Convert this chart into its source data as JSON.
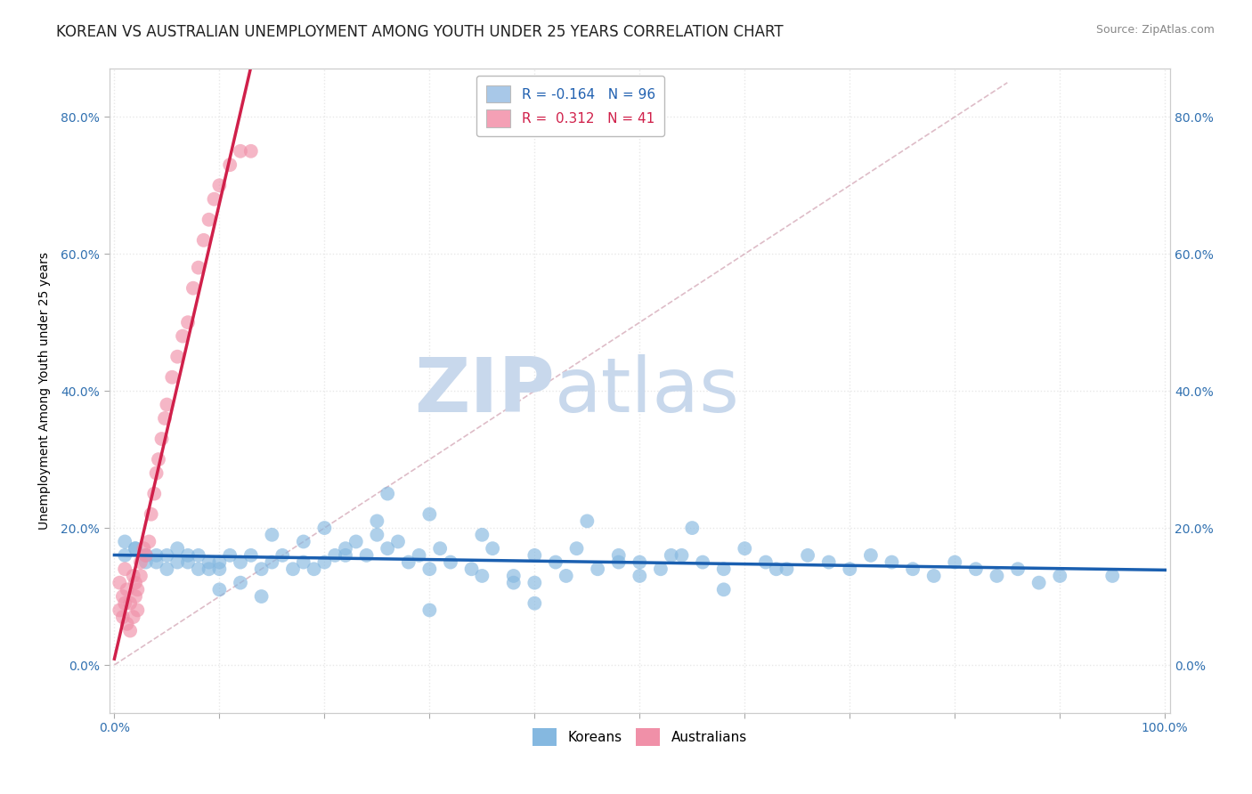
{
  "title": "KOREAN VS AUSTRALIAN UNEMPLOYMENT AMONG YOUTH UNDER 25 YEARS CORRELATION CHART",
  "source": "Source: ZipAtlas.com",
  "xlabel": "",
  "ylabel": "Unemployment Among Youth under 25 years",
  "xlim": [
    -0.005,
    1.005
  ],
  "ylim": [
    -0.07,
    0.87
  ],
  "xticks": [
    0.0,
    0.1,
    0.2,
    0.3,
    0.4,
    0.5,
    0.6,
    0.7,
    0.8,
    0.9,
    1.0
  ],
  "yticks": [
    0.0,
    0.2,
    0.4,
    0.6,
    0.8
  ],
  "ytick_labels": [
    "0.0%",
    "20.0%",
    "40.0%",
    "60.0%",
    "80.0%"
  ],
  "xtick_labels": [
    "0.0%",
    "",
    "",
    "",
    "",
    "",
    "",
    "",
    "",
    "",
    "100.0%"
  ],
  "legend_entries": [
    {
      "label": "Koreans",
      "color": "#a8c8e8",
      "R": "-0.164",
      "N": "96"
    },
    {
      "label": "Australians",
      "color": "#f4a0b5",
      "R": "0.312",
      "N": "41"
    }
  ],
  "korean_x": [
    0.01,
    0.02,
    0.03,
    0.04,
    0.05,
    0.06,
    0.07,
    0.08,
    0.09,
    0.1,
    0.01,
    0.02,
    0.03,
    0.04,
    0.05,
    0.06,
    0.07,
    0.08,
    0.09,
    0.1,
    0.11,
    0.12,
    0.13,
    0.14,
    0.15,
    0.16,
    0.17,
    0.18,
    0.19,
    0.2,
    0.21,
    0.22,
    0.23,
    0.24,
    0.25,
    0.26,
    0.27,
    0.28,
    0.29,
    0.3,
    0.32,
    0.34,
    0.36,
    0.38,
    0.4,
    0.42,
    0.44,
    0.46,
    0.48,
    0.5,
    0.52,
    0.54,
    0.56,
    0.58,
    0.6,
    0.62,
    0.64,
    0.66,
    0.68,
    0.7,
    0.72,
    0.74,
    0.76,
    0.78,
    0.8,
    0.82,
    0.84,
    0.86,
    0.88,
    0.9,
    0.3,
    0.35,
    0.4,
    0.45,
    0.5,
    0.55,
    0.35,
    0.4,
    0.15,
    0.2,
    0.25,
    0.3,
    0.1,
    0.12,
    0.14,
    0.95,
    0.18,
    0.22,
    0.26,
    0.31,
    0.38,
    0.43,
    0.48,
    0.53,
    0.58,
    0.63
  ],
  "korean_y": [
    0.16,
    0.17,
    0.15,
    0.16,
    0.14,
    0.15,
    0.16,
    0.14,
    0.15,
    0.14,
    0.18,
    0.17,
    0.16,
    0.15,
    0.16,
    0.17,
    0.15,
    0.16,
    0.14,
    0.15,
    0.16,
    0.15,
    0.16,
    0.14,
    0.15,
    0.16,
    0.14,
    0.15,
    0.14,
    0.15,
    0.16,
    0.17,
    0.18,
    0.16,
    0.19,
    0.17,
    0.18,
    0.15,
    0.16,
    0.14,
    0.15,
    0.14,
    0.17,
    0.13,
    0.16,
    0.15,
    0.17,
    0.14,
    0.16,
    0.15,
    0.14,
    0.16,
    0.15,
    0.14,
    0.17,
    0.15,
    0.14,
    0.16,
    0.15,
    0.14,
    0.16,
    0.15,
    0.14,
    0.13,
    0.15,
    0.14,
    0.13,
    0.14,
    0.12,
    0.13,
    0.22,
    0.19,
    0.09,
    0.21,
    0.13,
    0.2,
    0.13,
    0.12,
    0.19,
    0.2,
    0.21,
    0.08,
    0.11,
    0.12,
    0.1,
    0.13,
    0.18,
    0.16,
    0.25,
    0.17,
    0.12,
    0.13,
    0.15,
    0.16,
    0.11,
    0.14
  ],
  "australian_x": [
    0.005,
    0.008,
    0.01,
    0.012,
    0.015,
    0.018,
    0.02,
    0.022,
    0.025,
    0.028,
    0.03,
    0.033,
    0.035,
    0.038,
    0.04,
    0.042,
    0.045,
    0.048,
    0.05,
    0.055,
    0.06,
    0.065,
    0.07,
    0.075,
    0.08,
    0.085,
    0.09,
    0.095,
    0.1,
    0.11,
    0.12,
    0.13,
    0.005,
    0.008,
    0.01,
    0.012,
    0.015,
    0.018,
    0.02,
    0.022,
    0.025
  ],
  "australian_y": [
    0.12,
    0.1,
    0.14,
    0.11,
    0.09,
    0.13,
    0.12,
    0.08,
    0.15,
    0.17,
    0.16,
    0.18,
    0.22,
    0.25,
    0.28,
    0.3,
    0.33,
    0.36,
    0.38,
    0.42,
    0.45,
    0.48,
    0.5,
    0.55,
    0.58,
    0.62,
    0.65,
    0.68,
    0.7,
    0.73,
    0.75,
    0.75,
    0.08,
    0.07,
    0.09,
    0.06,
    0.05,
    0.07,
    0.1,
    0.11,
    0.13
  ],
  "korean_dot_color": "#85b8e0",
  "australian_dot_color": "#f090a8",
  "korean_line_color": "#1a5fb0",
  "australian_line_color": "#d0204a",
  "ref_line_color": "#d0a0b0",
  "grid_color": "#e8e8e8",
  "grid_style": "dotted",
  "background_color": "#ffffff",
  "watermark_zip": "ZIP",
  "watermark_atlas": "atlas",
  "watermark_color_zip": "#c8d8ec",
  "watermark_color_atlas": "#c8d8ec",
  "title_fontsize": 12,
  "axis_label_fontsize": 10,
  "tick_fontsize": 10,
  "legend_fontsize": 11
}
